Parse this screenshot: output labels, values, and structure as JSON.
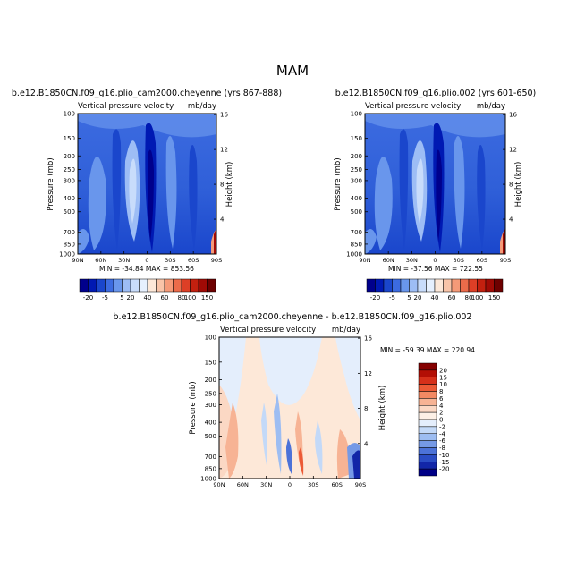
{
  "figure_title": "MAM",
  "panels": [
    {
      "case": "b.e12.B1850CN.f09_g16.plio_cam2000.cheyenne (yrs 867-888)",
      "var_label": "Vertical pressure velocity",
      "units": "mb/day",
      "min_max": "MIN = -34.84   MAX = 853.56"
    },
    {
      "case": "b.e12.B1850CN.f09_g16.plio.002 (yrs 601-650)",
      "var_label": "Vertical pressure velocity",
      "units": "mb/day",
      "min_max": "MIN = -37.56   MAX = 722.55"
    },
    {
      "case": "b.e12.B1850CN.f09_g16.plio_cam2000.cheyenne - b.e12.B1850CN.f09_g16.plio.002",
      "var_label": "Vertical pressure velocity",
      "units": "mb/day",
      "min_max": "MIN = -59.39   MAX = 220.94"
    }
  ],
  "chart_data": [
    {
      "type": "heatmap",
      "title": "b.e12.B1850CN.f09_g16.plio_cam2000.cheyenne (yrs 867-888)",
      "subtitle": "Vertical pressure velocity",
      "units": "mb/day",
      "xlabel": "",
      "ylabel": "Pressure (mb)",
      "y2label": "Height (km)",
      "x_ticks": [
        "90N",
        "60N",
        "30N",
        "0",
        "30S",
        "60S",
        "90S"
      ],
      "y_ticks": [
        "100",
        "150",
        "200",
        "250",
        "300",
        "400",
        "500",
        "700",
        "850",
        "1000"
      ],
      "y2_ticks": [
        "16",
        "12",
        "8",
        "4"
      ],
      "y_scale": "log",
      "ylim": [
        1000,
        100
      ],
      "min": -34.84,
      "max": 853.56,
      "colorbar_labels": [
        "-20",
        "-5",
        "5",
        "20",
        "40",
        "60",
        "80",
        "100",
        "150"
      ]
    },
    {
      "type": "heatmap",
      "title": "b.e12.B1850CN.f09_g16.plio.002 (yrs 601-650)",
      "subtitle": "Vertical pressure velocity",
      "units": "mb/day",
      "xlabel": "",
      "ylabel": "Pressure (mb)",
      "y2label": "Height (km)",
      "x_ticks": [
        "90N",
        "60N",
        "30N",
        "0",
        "30S",
        "60S",
        "90S"
      ],
      "y_ticks": [
        "100",
        "150",
        "200",
        "250",
        "300",
        "400",
        "500",
        "700",
        "850",
        "1000"
      ],
      "y2_ticks": [
        "16",
        "12",
        "8",
        "4"
      ],
      "y_scale": "log",
      "ylim": [
        1000,
        100
      ],
      "min": -37.56,
      "max": 722.55,
      "colorbar_labels": [
        "-20",
        "-5",
        "5",
        "20",
        "40",
        "60",
        "80",
        "100",
        "150"
      ]
    },
    {
      "type": "heatmap",
      "title": "b.e12.B1850CN.f09_g16.plio_cam2000.cheyenne - b.e12.B1850CN.f09_g16.plio.002",
      "subtitle": "Vertical pressure velocity",
      "units": "mb/day",
      "xlabel": "",
      "ylabel": "Pressure (mb)",
      "y2label": "Height (km)",
      "x_ticks": [
        "90N",
        "60N",
        "30N",
        "0",
        "30S",
        "60S",
        "90S"
      ],
      "y_ticks": [
        "100",
        "150",
        "200",
        "250",
        "300",
        "400",
        "500",
        "700",
        "850",
        "1000"
      ],
      "y2_ticks": [
        "16",
        "12",
        "8",
        "4"
      ],
      "y_scale": "log",
      "ylim": [
        1000,
        100
      ],
      "min": -59.39,
      "max": 220.94,
      "colorbar_labels": [
        "20",
        "15",
        "10",
        "8",
        "6",
        "4",
        "2",
        "0",
        "-2",
        "-4",
        "-6",
        "-8",
        "-10",
        "-15",
        "-20"
      ]
    }
  ],
  "colors": {
    "cbar_main": [
      "#00008c",
      "#0019b3",
      "#1a46cc",
      "#3c6be0",
      "#6996ec",
      "#9dbdf5",
      "#c8dcfb",
      "#e6f0fe",
      "#fde8d8",
      "#f9c4a8",
      "#f59a78",
      "#ec6b4a",
      "#dd3f26",
      "#c3200f",
      "#a00a05",
      "#6e0000"
    ],
    "cbar_diff": [
      "#850000",
      "#b30f05",
      "#d6301a",
      "#ec5a36",
      "#f38963",
      "#f7b394",
      "#fbd8c4",
      "#fdf0e6",
      "#e4eefc",
      "#c3d9f8",
      "#9dbdf2",
      "#7599e6",
      "#4c72d8",
      "#2a4cc4",
      "#1226a8",
      "#000087"
    ]
  }
}
